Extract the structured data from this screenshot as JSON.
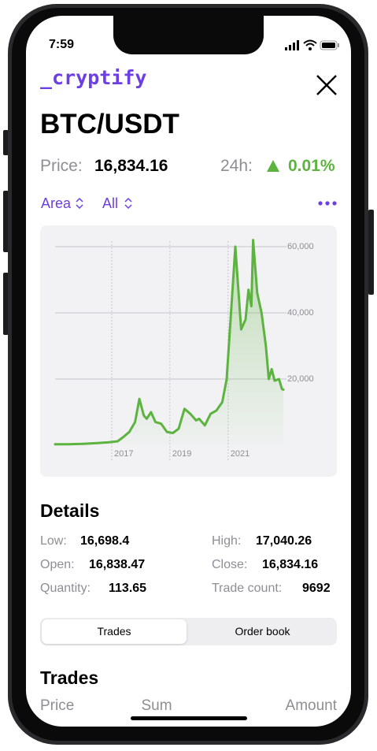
{
  "status_bar": {
    "time": "7:59"
  },
  "header": {
    "brand": "_cryptify",
    "pair": "BTC/USDT",
    "price_label": "Price:",
    "price": "16,834.16",
    "change_label": "24h:",
    "change": "0.01%"
  },
  "controls": {
    "chart_type": "Area",
    "range": "All"
  },
  "chart_data": {
    "type": "area",
    "color": "#5db33f",
    "x": [
      2015.05,
      2015.5,
      2016.0,
      2016.5,
      2016.9,
      2017.2,
      2017.4,
      2017.6,
      2017.8,
      2017.95,
      2018.1,
      2018.2,
      2018.35,
      2018.5,
      2018.7,
      2018.9,
      2019.1,
      2019.3,
      2019.5,
      2019.7,
      2019.9,
      2020.0,
      2020.2,
      2020.4,
      2020.6,
      2020.8,
      2020.95,
      2021.1,
      2021.25,
      2021.45,
      2021.6,
      2021.7,
      2021.8,
      2021.86,
      2022.0,
      2022.15,
      2022.3,
      2022.4,
      2022.5,
      2022.6,
      2022.75,
      2022.85,
      2022.9
    ],
    "values": [
      300,
      300,
      400,
      650,
      900,
      1200,
      2500,
      4000,
      7000,
      14000,
      9000,
      8000,
      10000,
      7000,
      6500,
      4000,
      3700,
      5000,
      11000,
      9500,
      7500,
      8000,
      6000,
      9500,
      10500,
      13000,
      20000,
      40000,
      60000,
      35000,
      38000,
      47000,
      42000,
      62000,
      46000,
      40000,
      30000,
      20000,
      23000,
      19500,
      20000,
      17000,
      16800
    ],
    "xlim": [
      2015.05,
      2022.9
    ],
    "ylim": [
      0,
      60000
    ],
    "xticks": [
      2017,
      2019,
      2021
    ],
    "yticks": [
      {
        "value": 20000,
        "label": "20,000"
      },
      {
        "value": 40000,
        "label": "40,000"
      },
      {
        "value": 60000,
        "label": "60,000"
      }
    ],
    "grid": true
  },
  "details": {
    "title": "Details",
    "items": [
      {
        "label": "Low:",
        "value": "16,698.4"
      },
      {
        "label": "High:",
        "value": "17,040.26"
      },
      {
        "label": "Open:",
        "value": "16,838.47"
      },
      {
        "label": "Close:",
        "value": "16,834.16"
      },
      {
        "label": "Quantity:",
        "value": "113.65"
      },
      {
        "label": "Trade count:",
        "value": "9692"
      }
    ]
  },
  "tabs": [
    "Trades",
    "Order book"
  ],
  "trades": {
    "title": "Trades",
    "columns": [
      "Price",
      "Sum",
      "Amount"
    ]
  }
}
